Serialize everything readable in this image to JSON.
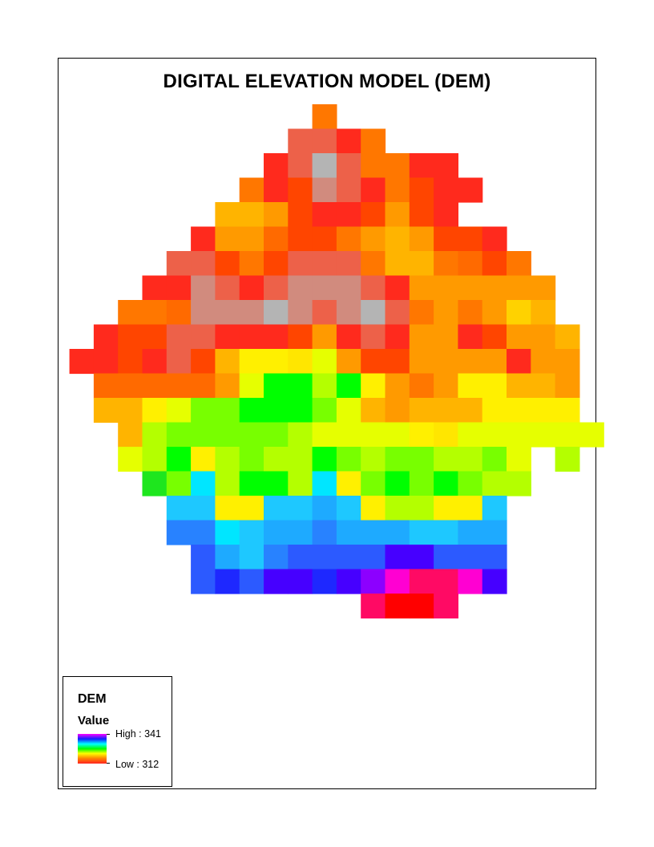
{
  "title": "DIGITAL ELEVATION MODEL (DEM)",
  "legend": {
    "layer_name": "DEM",
    "field_name": "Value",
    "high_label": "High : 341",
    "low_label": "Low : 312",
    "high": 341,
    "low": 312,
    "ramp_colors": [
      "#ff0000",
      "#ff8800",
      "#ffff00",
      "#00ff00",
      "#00ffff",
      "#0000ff",
      "#ff00ff"
    ]
  },
  "palette": {
    "A": "#ff7700",
    "B": "#ed6149",
    "C": "#ff4500",
    "D": "#ff2a1d",
    "E": "#b4b4b4",
    "F": "#ff9a00",
    "G": "#d18b7e",
    "H": "#ffb400",
    "I": "#ffd200",
    "J": "#fff000",
    "K": "#e6ff00",
    "L": "#b4ff00",
    "M": "#78ff00",
    "N": "#00ff00",
    "O": "#1ee61e",
    "P": "#00e6ff",
    "Q": "#1ec8ff",
    "R": "#1eaaff",
    "S": "#2882ff",
    "T": "#2c5aff",
    "U": "#1e28ff",
    "V": "#4600ff",
    "W": "#8c00ff",
    "X": "#ff00d2",
    "Y": "#ff0a64",
    "Z": "#ff0000",
    "c": "#ff6a00",
    "g": "#ffe600"
  },
  "grid_rows": [
    "............x...............",
    "...........BBDA.............",
    "..........DBEBAADD..........",
    ".........ADCGBDACDD.........",
    "........HHFCDDCFCD..........",
    ".......DFFcCCAFHFCCD........",
    "......BBCACBBBAHHAcCA.......",
    ".....DDGBDBGGGBDFFFFFF......",
    "....AAcGGGEGBGEBAFAFIH......",
    "...DCCBBDDDCFDBDFFDCFFH.....",
    "..DDCDBCHJJgKFCCFFFFDFF.....",
    "...cccccFKNNLNJFAFJJHHF.....",
    "...HHJKMMNNNMKHFHHHJJJJ.....",
    "....HLMMMMMLKKKKJgKKKKKK....",
    "....KLNJLMLLNMLMMLLMK L.....",
    ".....OMPLNNLPJMNMNMLL.......",
    "......QQJJQQRQJLLJJQ........",
    "......SSPQRRSRRRQQRR........",
    ".......TRQSTTTTVVTTT........",
    ".......TUTVVUVWXYYXV........",
    "..............YZZY.........."
  ]
}
